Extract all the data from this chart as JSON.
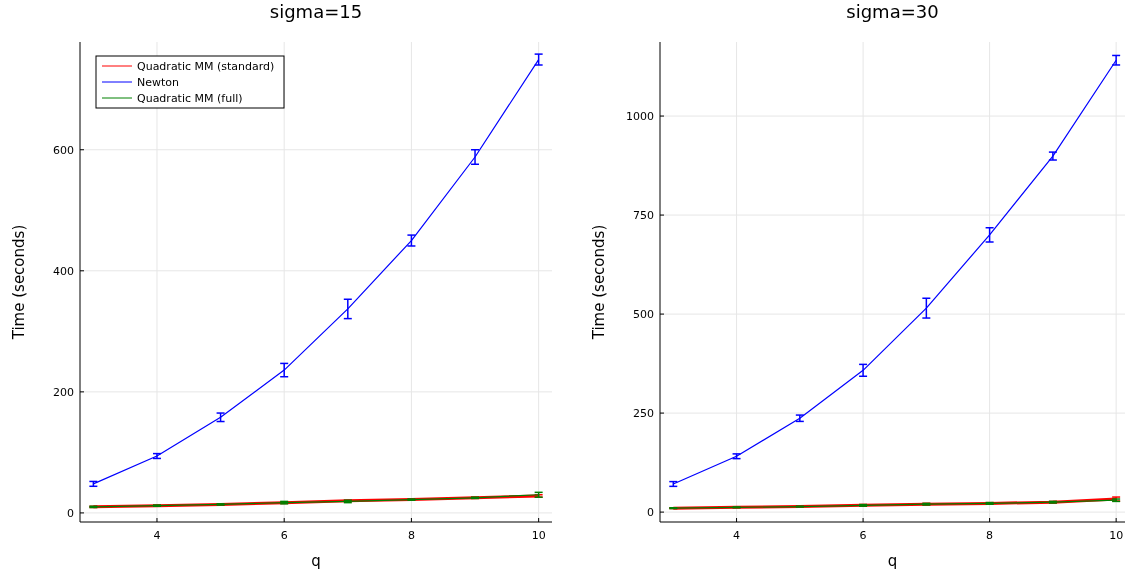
{
  "chart_data": [
    {
      "type": "line",
      "title": "sigma=15",
      "xlabel": "q",
      "ylabel": "Time (seconds)",
      "x": [
        3,
        4,
        5,
        6,
        7,
        8,
        9,
        10
      ],
      "xlim": [
        2.79,
        10.21
      ],
      "xticks": [
        4,
        6,
        8,
        10
      ],
      "ylim": [
        -15,
        778
      ],
      "yticks": [
        0,
        200,
        400,
        600
      ],
      "grid": true,
      "legend": "top left",
      "series": [
        {
          "name": "Quadratic MM (standard)",
          "color": "#ff0000",
          "values": [
            10,
            12,
            14,
            17,
            20,
            22,
            25,
            28
          ],
          "errors": [
            1,
            1,
            1,
            1,
            1,
            1,
            1,
            2
          ]
        },
        {
          "name": "Newton",
          "color": "#0000ff",
          "values": [
            48,
            94,
            158,
            236,
            337,
            450,
            588,
            749
          ],
          "errors": [
            4,
            4,
            7,
            11,
            16,
            9,
            12,
            9
          ]
        },
        {
          "name": "Quadratic MM (full)",
          "color": "#008000",
          "values": [
            10,
            12,
            14,
            17,
            19,
            22,
            25,
            30
          ],
          "errors": [
            1,
            1,
            1,
            2,
            2,
            1,
            1,
            4
          ]
        }
      ]
    },
    {
      "type": "line",
      "title": "sigma=30",
      "xlabel": "q",
      "ylabel": "Time (seconds)",
      "x": [
        3,
        4,
        5,
        6,
        7,
        8,
        9,
        10
      ],
      "xlim": [
        2.79,
        10.14
      ],
      "xticks": [
        4,
        6,
        8,
        10
      ],
      "ylim": [
        -25,
        1187
      ],
      "yticks": [
        0,
        250,
        500,
        750,
        1000
      ],
      "grid": true,
      "series": [
        {
          "color": "#ff0000",
          "values": [
            10,
            12,
            14,
            17,
            20,
            22,
            25,
            33
          ],
          "errors": [
            1,
            1,
            1,
            2,
            2,
            2,
            2,
            5
          ]
        },
        {
          "color": "#0000ff",
          "values": [
            71,
            141,
            237,
            358,
            515,
            700,
            899,
            1141
          ],
          "errors": [
            6,
            6,
            8,
            15,
            25,
            18,
            10,
            12
          ]
        },
        {
          "color": "#008000",
          "values": [
            10,
            12,
            14,
            17,
            20,
            22,
            25,
            30
          ],
          "errors": [
            1,
            1,
            1,
            2,
            2,
            2,
            2,
            3
          ]
        }
      ]
    }
  ]
}
